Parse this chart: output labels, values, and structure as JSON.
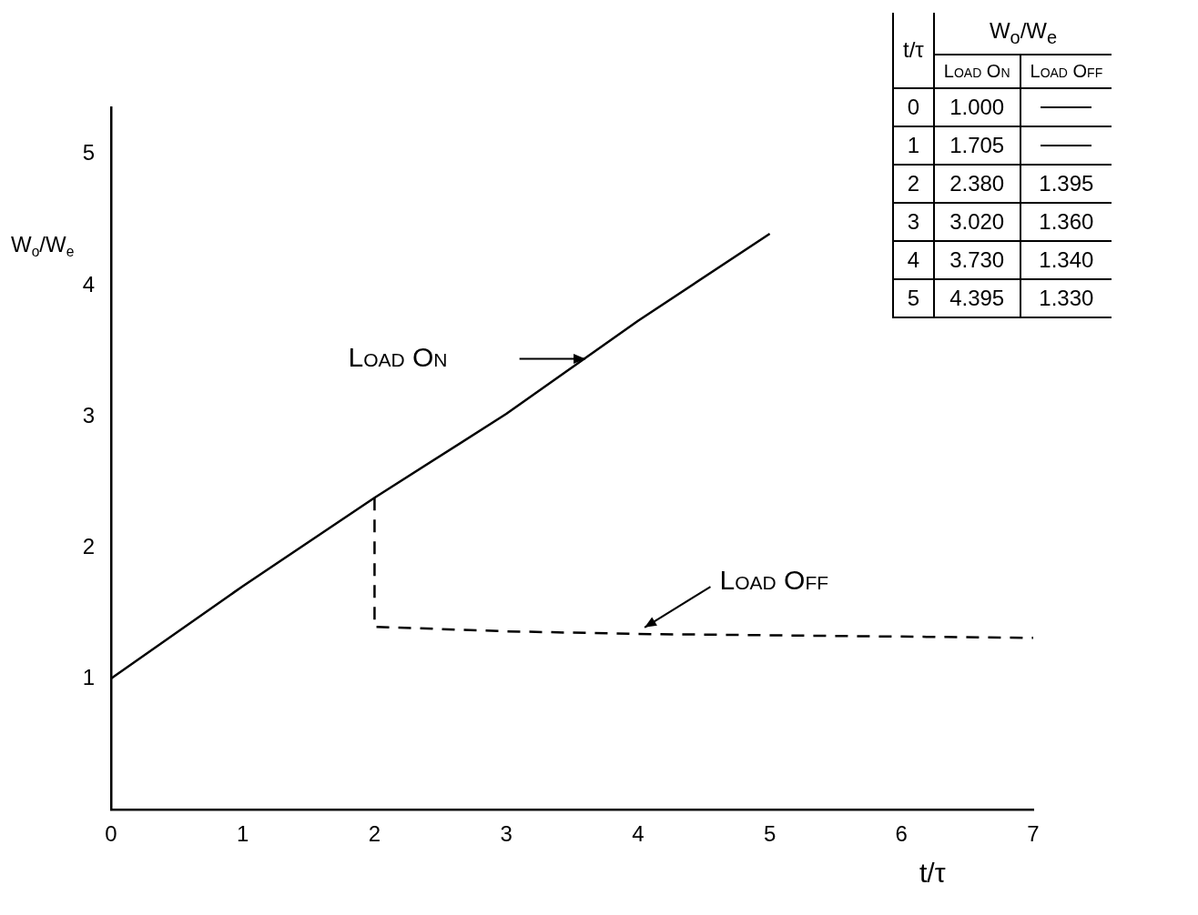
{
  "chart_data": [
    {
      "type": "line",
      "xlabel": "t/τ",
      "ylabel": "W$_{o}$/W$_{e}$",
      "xlim": [
        0,
        7
      ],
      "ylim": [
        0,
        5.36
      ],
      "xticks": [
        0,
        1,
        2,
        3,
        4,
        5,
        6,
        7
      ],
      "yticks": [
        1,
        2,
        3,
        4,
        5
      ],
      "grid": false,
      "legend": false,
      "marker": "none",
      "series": [
        {
          "name": "Load On",
          "color": "#000000",
          "line_style": "solid",
          "x": [
            0,
            1,
            2,
            3,
            4,
            5
          ],
          "values": [
            1.0,
            1.705,
            2.38,
            3.02,
            3.73,
            4.395
          ]
        },
        {
          "name": "Load Off",
          "color": "#000000",
          "line_style": "dashed",
          "x": [
            2,
            2,
            3,
            4,
            5,
            7
          ],
          "values": [
            2.38,
            1.395,
            1.36,
            1.34,
            1.33,
            1.31
          ]
        }
      ]
    },
    {
      "type": "heatmap",
      "ylabel": "t/τ",
      "xlabel": "W$_{o}$/W$_{e}$",
      "categories": [
        "Load On",
        "Load Off"
      ],
      "y_categories": [
        "0",
        "1",
        "2",
        "3",
        "4",
        "5"
      ],
      "cells": [
        [
          1.0,
          null
        ],
        [
          1.705,
          null
        ],
        [
          2.38,
          1.395
        ],
        [
          3.02,
          1.36
        ],
        [
          3.73,
          1.34
        ],
        [
          4.395,
          1.33
        ]
      ],
      "cell_labels": [
        [
          "1.000",
          null
        ],
        [
          "1.705",
          null
        ],
        [
          "2.380",
          "1.395"
        ],
        [
          "3.020",
          "1.360"
        ],
        [
          "3.730",
          "1.340"
        ],
        [
          "4.395",
          "1.330"
        ]
      ]
    }
  ]
}
